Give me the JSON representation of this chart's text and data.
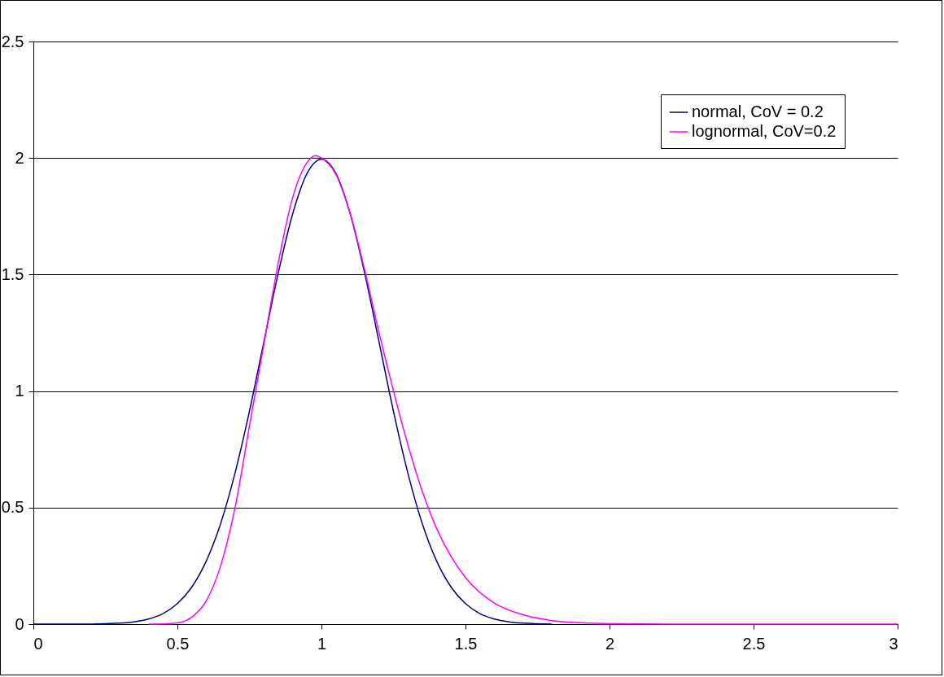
{
  "chart_data": {
    "type": "line",
    "xlim": [
      0,
      3
    ],
    "xticks": [
      0,
      0.5,
      1,
      1.5,
      2,
      2.5,
      3
    ],
    "ylim": [
      0,
      2.5
    ],
    "yticks": [
      0,
      0.5,
      1,
      1.5,
      2,
      2.5
    ],
    "grid": "y",
    "legend": "top right",
    "marker": "none",
    "line_style": "solid",
    "series": [
      {
        "name": "normal, CoV = 0.2",
        "color": "#000080",
        "x": [
          0,
          0.2,
          0.3,
          0.35,
          0.4,
          0.45,
          0.5,
          0.55,
          0.6,
          0.65,
          0.7,
          0.75,
          0.8,
          0.85,
          0.9,
          0.95,
          1,
          1.05,
          1.1,
          1.15,
          1.2,
          1.25,
          1.3,
          1.35,
          1.4,
          1.45,
          1.5,
          1.55,
          1.6,
          1.65,
          1.7,
          1.8
        ],
        "values": [
          0,
          0,
          0.004,
          0.01,
          0.022,
          0.045,
          0.088,
          0.159,
          0.27,
          0.431,
          0.648,
          0.913,
          1.21,
          1.506,
          1.76,
          1.934,
          1.995,
          1.934,
          1.76,
          1.506,
          1.21,
          0.913,
          0.648,
          0.431,
          0.27,
          0.159,
          0.088,
          0.045,
          0.022,
          0.01,
          0.004,
          0
        ]
      },
      {
        "name": "lognormal, CoV=0.2",
        "color": "#ff00ff",
        "x": [
          0.4,
          0.45,
          0.5,
          0.55,
          0.6,
          0.65,
          0.7,
          0.75,
          0.8,
          0.85,
          0.9,
          0.95,
          0.98,
          1,
          1.05,
          1.1,
          1.15,
          1.2,
          1.25,
          1.3,
          1.35,
          1.4,
          1.45,
          1.5,
          1.6,
          1.7,
          1.8,
          1.9,
          2,
          2.2,
          2.5,
          3
        ],
        "values": [
          0,
          0.001,
          0.005,
          0.03,
          0.1,
          0.25,
          0.5,
          0.85,
          1.2,
          1.55,
          1.83,
          1.98,
          2.01,
          2,
          1.93,
          1.76,
          1.52,
          1.25,
          1,
          0.77,
          0.57,
          0.41,
          0.29,
          0.2,
          0.09,
          0.04,
          0.015,
          0.006,
          0.002,
          0,
          0,
          0
        ]
      }
    ]
  }
}
